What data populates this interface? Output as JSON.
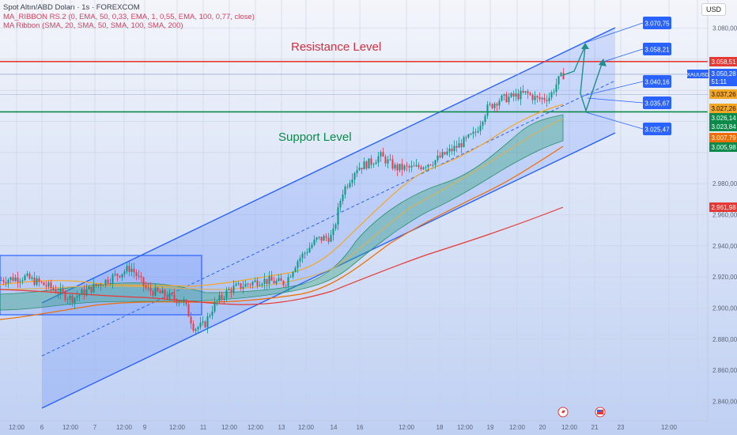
{
  "chart_data": {
    "type": "candlestick",
    "symbol": "XAUUSD",
    "header": {
      "line1": "Spot Altın/ABD Doları · 1s · FOREXCOM",
      "line2": "MA_RIBBON RS.2 (0, EMA, 50, 0,33, EMA, 1, 0,55, EMA, 100, 0,77, close)",
      "line3": "MA Ribbon (SMA, 20, SMA, 50, SMA, 100, SMA, 200)"
    },
    "currency_button": "USD",
    "annotations": {
      "resistance": "Resistance Level",
      "support": "Support Level"
    },
    "ylim": [
      2830,
      3092
    ],
    "y_ticks": [
      "3.080,00",
      "2.980,00",
      "2.960,00",
      "2.940,00",
      "2.920,00",
      "2.900,00",
      "2.880,00",
      "2.860,00",
      "2.840,00"
    ],
    "x_ticks": [
      "12:00",
      "6",
      "12:00",
      "7",
      "12:00",
      "9",
      "12:00",
      "11",
      "12:00",
      "12:00",
      "13",
      "12:00",
      "14",
      "16",
      "12:00",
      "18",
      "12:00",
      "19",
      "12:00",
      "20",
      "12:00",
      "21",
      "23",
      "12:00"
    ],
    "horizontal_levels": [
      {
        "name": "resistance",
        "value": 3058.51,
        "color": "#e53935"
      },
      {
        "name": "support",
        "value": 3026.14,
        "color": "#0b8a4a"
      }
    ],
    "price_labels": [
      {
        "text": "3.058,51",
        "bg": "#e53935",
        "fg": "#ffffff"
      },
      {
        "text": "3.050,28",
        "bg": "#2962ff",
        "fg": "#ffffff"
      },
      {
        "text": "51:11",
        "bg": "#2962ff",
        "fg": "#ffffff"
      },
      {
        "text": "3.037,26",
        "bg": "#f5a623",
        "fg": "#111111"
      },
      {
        "text": "3.027,26",
        "bg": "#f5a623",
        "fg": "#111111"
      },
      {
        "text": "3.026,14",
        "bg": "#0b8a4a",
        "fg": "#ffffff"
      },
      {
        "text": "3.023,84",
        "bg": "#0b8a4a",
        "fg": "#ffffff"
      },
      {
        "text": "3.007,79",
        "bg": "#ef6c00",
        "fg": "#ffffff"
      },
      {
        "text": "3.005,98",
        "bg": "#0b8a4a",
        "fg": "#ffffff"
      },
      {
        "text": "2.961,98",
        "bg": "#e53935",
        "fg": "#ffffff"
      }
    ],
    "target_labels": [
      "3.070,75",
      "3.058,21",
      "3.040,16",
      "3.035,67",
      "3.025,47"
    ],
    "current_price": 3050.28,
    "colors": {
      "up": "#089981",
      "down": "#f23645",
      "channel": "#2962ff",
      "sma200": "#e53935"
    }
  }
}
